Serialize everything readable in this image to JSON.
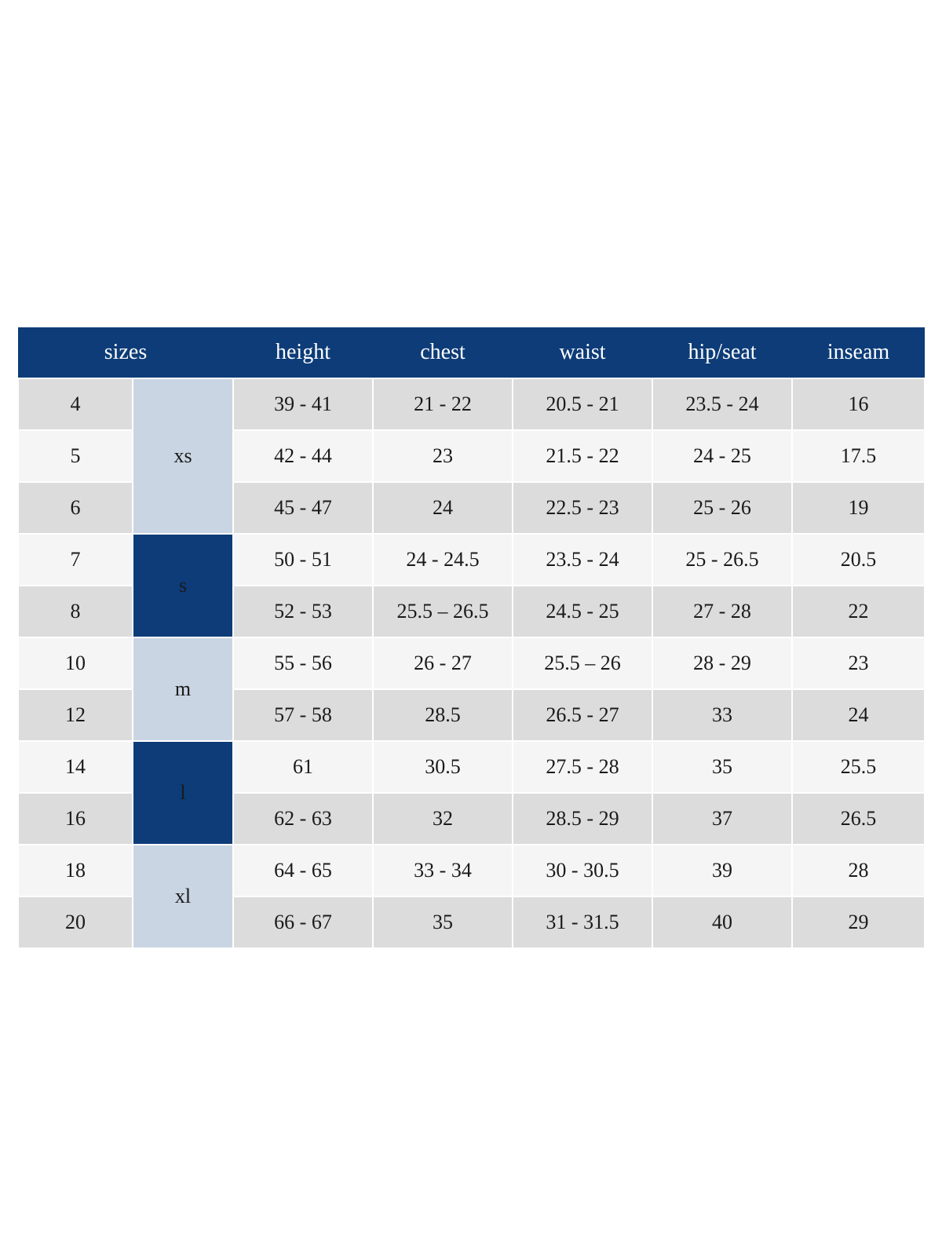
{
  "colors": {
    "header_bg": "#0d3c78",
    "header_text": "#ffffff",
    "group_dark_bg": "#0d3c78",
    "group_light_bg": "#c9d5e2",
    "row_gray": "#dcdcdc",
    "row_light": "#f5f5f5",
    "body_text": "#1a1a1a"
  },
  "chart_data": {
    "type": "table",
    "header": {
      "sizes_label": "sizes",
      "measure_columns": [
        "height",
        "chest",
        "waist",
        "hip/seat",
        "inseam"
      ]
    },
    "groups": [
      {
        "label": "xs",
        "span": 3,
        "style": "light"
      },
      {
        "label": "s",
        "span": 2,
        "style": "dark"
      },
      {
        "label": "m",
        "span": 2,
        "style": "light"
      },
      {
        "label": "l",
        "span": 2,
        "style": "dark"
      },
      {
        "label": "xl",
        "span": 2,
        "style": "light"
      }
    ],
    "rows": [
      {
        "size": "4",
        "group": "xs",
        "height": "39 - 41",
        "chest": "21 - 22",
        "waist": "20.5 - 21",
        "hip_seat": "23.5 - 24",
        "inseam": "16",
        "shade": "gray"
      },
      {
        "size": "5",
        "group": "xs",
        "height": "42 - 44",
        "chest": "23",
        "waist": "21.5 - 22",
        "hip_seat": "24 - 25",
        "inseam": "17.5",
        "shade": "light"
      },
      {
        "size": "6",
        "group": "xs",
        "height": "45 - 47",
        "chest": "24",
        "waist": "22.5 - 23",
        "hip_seat": "25 - 26",
        "inseam": "19",
        "shade": "gray"
      },
      {
        "size": "7",
        "group": "s",
        "height": "50 - 51",
        "chest": "24 - 24.5",
        "waist": "23.5 - 24",
        "hip_seat": "25 - 26.5",
        "inseam": "20.5",
        "shade": "light"
      },
      {
        "size": "8",
        "group": "s",
        "height": "52 - 53",
        "chest": "25.5 – 26.5",
        "waist": "24.5 - 25",
        "hip_seat": "27 - 28",
        "inseam": "22",
        "shade": "gray"
      },
      {
        "size": "10",
        "group": "m",
        "height": "55 - 56",
        "chest": "26 - 27",
        "waist": "25.5 – 26",
        "hip_seat": "28 - 29",
        "inseam": "23",
        "shade": "light"
      },
      {
        "size": "12",
        "group": "m",
        "height": "57 - 58",
        "chest": "28.5",
        "waist": "26.5 - 27",
        "hip_seat": "33",
        "inseam": "24",
        "shade": "gray"
      },
      {
        "size": "14",
        "group": "l",
        "height": "61",
        "chest": "30.5",
        "waist": "27.5 - 28",
        "hip_seat": "35",
        "inseam": "25.5",
        "shade": "light"
      },
      {
        "size": "16",
        "group": "l",
        "height": "62 - 63",
        "chest": "32",
        "waist": "28.5 - 29",
        "hip_seat": "37",
        "inseam": "26.5",
        "shade": "gray"
      },
      {
        "size": "18",
        "group": "xl",
        "height": "64 - 65",
        "chest": "33 - 34",
        "waist": "30 - 30.5",
        "hip_seat": "39",
        "inseam": "28",
        "shade": "light"
      },
      {
        "size": "20",
        "group": "xl",
        "height": "66 - 67",
        "chest": "35",
        "waist": "31 - 31.5",
        "hip_seat": "40",
        "inseam": "29",
        "shade": "gray"
      }
    ]
  }
}
